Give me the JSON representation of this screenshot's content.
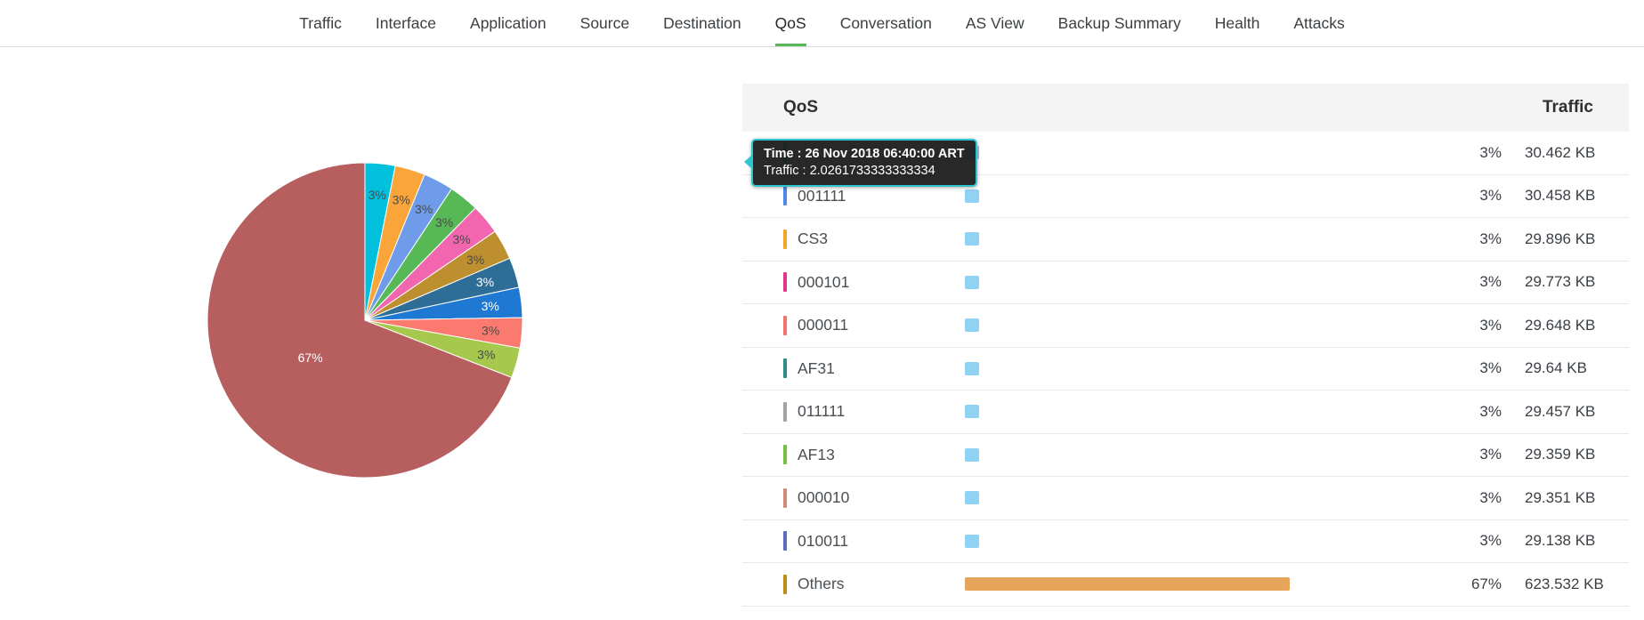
{
  "nav": {
    "active": "QoS",
    "accent": "#56b757",
    "tabs": [
      {
        "label": "Traffic"
      },
      {
        "label": "Interface"
      },
      {
        "label": "Application"
      },
      {
        "label": "Source"
      },
      {
        "label": "Destination"
      },
      {
        "label": "QoS"
      },
      {
        "label": "Conversation"
      },
      {
        "label": "AS View"
      },
      {
        "label": "Backup Summary"
      },
      {
        "label": "Health"
      },
      {
        "label": "Attacks"
      }
    ]
  },
  "tooltip": {
    "time": "Time : 26 Nov 2018 06:40:00 ART",
    "traffic": "Traffic : 2.0261733333333334",
    "border_color": "#2fc5cf"
  },
  "table": {
    "headers": {
      "qos": "QoS",
      "traffic": "Traffic"
    },
    "rows": [
      {
        "qos": "",
        "tick_color": "#00c0dc",
        "pct": "3%",
        "pct_value": 3,
        "traffic": "30.462 KB",
        "bar_color": "#8fd2f4"
      },
      {
        "qos": "001111",
        "tick_color": "#4f86e8",
        "pct": "3%",
        "pct_value": 3,
        "traffic": "30.458 KB",
        "bar_color": "#8fd2f4"
      },
      {
        "qos": "CS3",
        "tick_color": "#f2a52a",
        "pct": "3%",
        "pct_value": 3,
        "traffic": "29.896 KB",
        "bar_color": "#8fd2f4"
      },
      {
        "qos": "000101",
        "tick_color": "#e0368c",
        "pct": "3%",
        "pct_value": 3,
        "traffic": "29.773 KB",
        "bar_color": "#8fd2f4"
      },
      {
        "qos": "000011",
        "tick_color": "#f4746b",
        "pct": "3%",
        "pct_value": 3,
        "traffic": "29.648 KB",
        "bar_color": "#8fd2f4"
      },
      {
        "qos": "AF31",
        "tick_color": "#2e8c86",
        "pct": "3%",
        "pct_value": 3,
        "traffic": "29.64 KB",
        "bar_color": "#8fd2f4"
      },
      {
        "qos": "011111",
        "tick_color": "#a3a3a3",
        "pct": "3%",
        "pct_value": 3,
        "traffic": "29.457 KB",
        "bar_color": "#8fd2f4"
      },
      {
        "qos": "AF13",
        "tick_color": "#74c044",
        "pct": "3%",
        "pct_value": 3,
        "traffic": "29.359 KB",
        "bar_color": "#8fd2f4"
      },
      {
        "qos": "000010",
        "tick_color": "#cf8b7a",
        "pct": "3%",
        "pct_value": 3,
        "traffic": "29.351 KB",
        "bar_color": "#8fd2f4"
      },
      {
        "qos": "010011",
        "tick_color": "#5c6bc0",
        "pct": "3%",
        "pct_value": 3,
        "traffic": "29.138 KB",
        "bar_color": "#8fd2f4"
      },
      {
        "qos": "Others",
        "tick_color": "#bd8d17",
        "pct": "67%",
        "pct_value": 67,
        "traffic": "623.532 KB",
        "bar_color": "#e7a45b"
      }
    ]
  },
  "chart_data": {
    "type": "pie",
    "title": "QoS traffic distribution",
    "legend_position": "table-right",
    "slices": [
      {
        "label": "3%",
        "value": 3,
        "color": "#00c0dc",
        "text_color": "#4a4a4a"
      },
      {
        "label": "3%",
        "value": 3,
        "color": "#f9a53a",
        "text_color": "#4a4a4a"
      },
      {
        "label": "3%",
        "value": 3,
        "color": "#6e9bea",
        "text_color": "#4a4a4a"
      },
      {
        "label": "3%",
        "value": 3,
        "color": "#57b956",
        "text_color": "#4a4a4a"
      },
      {
        "label": "3%",
        "value": 3,
        "color": "#f266b0",
        "text_color": "#4a4a4a"
      },
      {
        "label": "3%",
        "value": 3,
        "color": "#bd8f2e",
        "text_color": "#4a4a4a"
      },
      {
        "label": "3%",
        "value": 3,
        "color": "#2e6e96",
        "text_color": "#ffffff"
      },
      {
        "label": "3%",
        "value": 3,
        "color": "#1f78d1",
        "text_color": "#ffffff"
      },
      {
        "label": "3%",
        "value": 3,
        "color": "#fb7a6f",
        "text_color": "#4a4a4a"
      },
      {
        "label": "3%",
        "value": 3,
        "color": "#a6c84d",
        "text_color": "#4a4a4a"
      },
      {
        "label": "67%",
        "value": 67,
        "color": "#b75f5f",
        "text_color": "#ffffff"
      }
    ]
  }
}
